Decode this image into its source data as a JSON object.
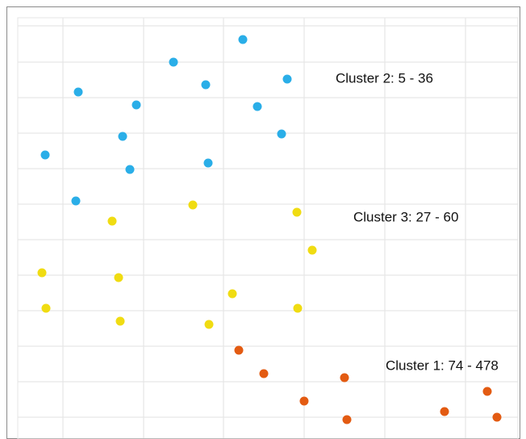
{
  "chart_data": {
    "type": "scatter",
    "annotations": [
      "Cluster 2: 5 - 36",
      "Cluster 3: 27 - 60",
      "Cluster 1: 74 - 478"
    ],
    "series": [
      {
        "color": "#2aaee8",
        "x": [
          277,
          191,
          332,
          231,
          73,
          145,
          295,
          325,
          128,
          32,
          234,
          137,
          70
        ],
        "y": [
          491,
          463,
          442,
          435,
          426,
          410,
          408,
          374,
          371,
          348,
          338,
          330,
          291
        ]
      },
      {
        "color": "#f0dc12",
        "x": [
          215,
          344,
          115,
          363,
          28,
          123,
          264,
          33,
          345,
          125,
          235
        ],
        "y": [
          286,
          277,
          266,
          230,
          202,
          196,
          176,
          158,
          158,
          142,
          138
        ]
      },
      {
        "color": "#e35b12",
        "x": [
          272,
          303,
          403,
          580,
          353,
          527,
          406,
          592
        ],
        "y": [
          106,
          77,
          72,
          55,
          43,
          30,
          20,
          23
        ]
      }
    ],
    "xlim": [
      0,
      616
    ],
    "ylim": [
      0,
      516
    ],
    "xticks": [
      54,
      154,
      253,
      353,
      453,
      553
    ],
    "yticks": [
      23,
      67,
      111,
      155,
      199,
      243,
      287,
      331,
      375,
      419,
      463,
      508
    ],
    "grid": true
  }
}
